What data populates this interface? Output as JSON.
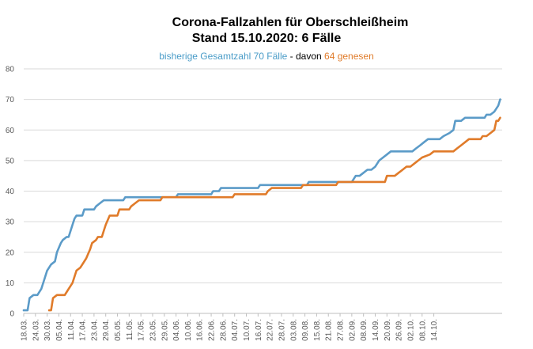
{
  "chart_data": {
    "type": "line",
    "title": "Corona-Fallzahlen für Oberschleißheim",
    "title2": "Stand 15.10.2020: 6 Fälle",
    "subtitle": {
      "part1": "bisherige Gesamtzahl 70 Fälle",
      "part2": " - davon ",
      "part3": "64 genesen"
    },
    "ylim": [
      0,
      80
    ],
    "yticks": [
      0,
      10,
      20,
      30,
      40,
      50,
      60,
      70,
      80
    ],
    "grid": true,
    "x_ticks": [
      "18.03.",
      "24.03.",
      "30.03.",
      "05.04.",
      "11.04.",
      "17.04.",
      "23.04.",
      "29.04.",
      "05.05.",
      "11.05.",
      "17.05.",
      "23.05.",
      "29.05.",
      "04.06.",
      "10.06.",
      "16.06.",
      "22.06.",
      "28.06.",
      "04.07.",
      "10.07.",
      "16.07.",
      "22.07.",
      "28.07.",
      "03.08.",
      "09.08.",
      "15.08.",
      "21.08.",
      "27.08.",
      "02.09.",
      "08.09.",
      "14.09.",
      "20.09.",
      "26.09.",
      "02.10.",
      "08.10.",
      "14.10."
    ],
    "series": [
      {
        "color": "#5b9bc8",
        "points": [
          [
            0,
            1
          ],
          [
            2,
            1
          ],
          [
            3,
            5
          ],
          [
            5,
            6
          ],
          [
            7,
            6
          ],
          [
            9,
            8
          ],
          [
            10,
            10
          ],
          [
            12,
            14
          ],
          [
            14,
            16
          ],
          [
            16,
            17
          ],
          [
            17,
            20
          ],
          [
            19,
            23
          ],
          [
            20,
            24
          ],
          [
            22,
            25
          ],
          [
            23,
            25
          ],
          [
            25,
            29
          ],
          [
            26,
            31
          ],
          [
            27,
            32
          ],
          [
            30,
            32
          ],
          [
            31,
            34
          ],
          [
            36,
            34
          ],
          [
            37,
            35
          ],
          [
            39,
            36
          ],
          [
            41,
            37
          ],
          [
            51,
            37
          ],
          [
            52,
            38
          ],
          [
            78,
            38
          ],
          [
            79,
            39
          ],
          [
            96,
            39
          ],
          [
            97,
            40
          ],
          [
            100,
            40
          ],
          [
            101,
            41
          ],
          [
            120,
            41
          ],
          [
            121,
            42
          ],
          [
            145,
            42
          ],
          [
            146,
            43
          ],
          [
            168,
            43
          ],
          [
            170,
            45
          ],
          [
            172,
            45
          ],
          [
            174,
            46
          ],
          [
            176,
            47
          ],
          [
            178,
            47
          ],
          [
            180,
            48
          ],
          [
            182,
            50
          ],
          [
            184,
            51
          ],
          [
            186,
            52
          ],
          [
            188,
            53
          ],
          [
            199,
            53
          ],
          [
            201,
            54
          ],
          [
            203,
            55
          ],
          [
            205,
            56
          ],
          [
            207,
            57
          ],
          [
            213,
            57
          ],
          [
            215,
            58
          ],
          [
            218,
            59
          ],
          [
            220,
            60
          ],
          [
            221,
            63
          ],
          [
            224,
            63
          ],
          [
            226,
            64
          ],
          [
            236,
            64
          ],
          [
            237,
            65
          ],
          [
            239,
            65
          ],
          [
            241,
            66
          ],
          [
            243,
            68
          ],
          [
            244,
            70
          ]
        ]
      },
      {
        "color": "#e07b2a",
        "points": [
          [
            13,
            1
          ],
          [
            14,
            1
          ],
          [
            15,
            5
          ],
          [
            17,
            6
          ],
          [
            21,
            6
          ],
          [
            22,
            7
          ],
          [
            24,
            9
          ],
          [
            25,
            10
          ],
          [
            26,
            12
          ],
          [
            27,
            14
          ],
          [
            29,
            15
          ],
          [
            30,
            16
          ],
          [
            32,
            18
          ],
          [
            34,
            21
          ],
          [
            35,
            23
          ],
          [
            37,
            24
          ],
          [
            38,
            25
          ],
          [
            40,
            25
          ],
          [
            41,
            27
          ],
          [
            42,
            29
          ],
          [
            44,
            32
          ],
          [
            48,
            32
          ],
          [
            49,
            34
          ],
          [
            54,
            34
          ],
          [
            55,
            35
          ],
          [
            57,
            36
          ],
          [
            59,
            37
          ],
          [
            70,
            37
          ],
          [
            71,
            38
          ],
          [
            107,
            38
          ],
          [
            108,
            39
          ],
          [
            124,
            39
          ],
          [
            125,
            40
          ],
          [
            127,
            41
          ],
          [
            142,
            41
          ],
          [
            143,
            42
          ],
          [
            160,
            42
          ],
          [
            161,
            43
          ],
          [
            185,
            43
          ],
          [
            186,
            45
          ],
          [
            190,
            45
          ],
          [
            192,
            46
          ],
          [
            194,
            47
          ],
          [
            196,
            48
          ],
          [
            198,
            48
          ],
          [
            200,
            49
          ],
          [
            202,
            50
          ],
          [
            204,
            51
          ],
          [
            208,
            52
          ],
          [
            210,
            53
          ],
          [
            220,
            53
          ],
          [
            222,
            54
          ],
          [
            224,
            55
          ],
          [
            226,
            56
          ],
          [
            228,
            57
          ],
          [
            234,
            57
          ],
          [
            235,
            58
          ],
          [
            237,
            58
          ],
          [
            239,
            59
          ],
          [
            241,
            60
          ],
          [
            242,
            63
          ],
          [
            243,
            63
          ],
          [
            244,
            64
          ]
        ]
      }
    ]
  }
}
